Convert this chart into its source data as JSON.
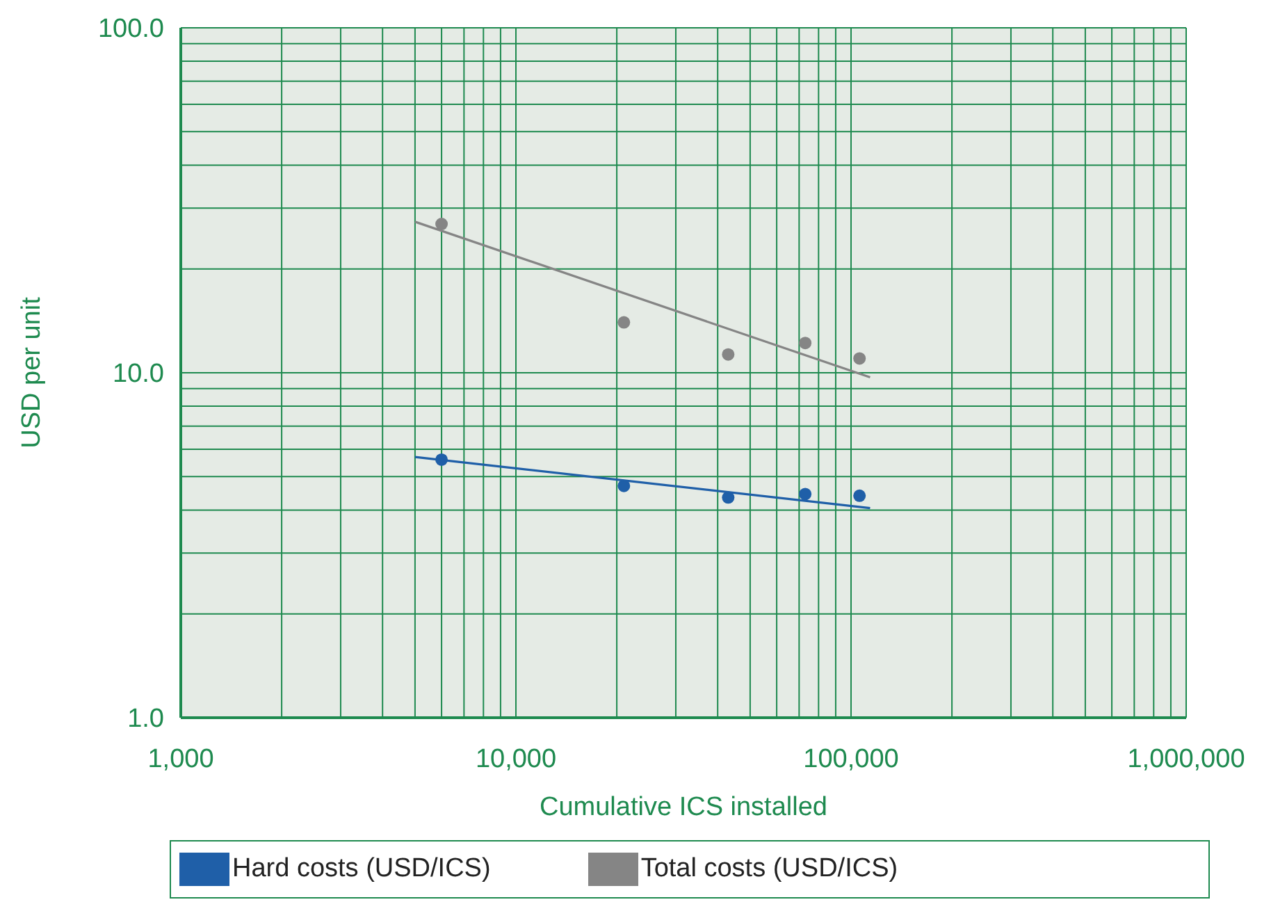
{
  "chart_data": {
    "type": "scatter",
    "xlabel": "Cumulative ICS installed",
    "ylabel": "USD per unit",
    "log": "xy",
    "grid": true,
    "legend": "bottom",
    "marker": "circle",
    "xlim": [
      1000,
      1000000
    ],
    "ylim": [
      1,
      100
    ],
    "xticks": [
      {
        "value": 1000,
        "label": "1,000"
      },
      {
        "value": 2000,
        "label": null
      },
      {
        "value": 3000,
        "label": null
      },
      {
        "value": 4000,
        "label": null
      },
      {
        "value": 5000,
        "label": null
      },
      {
        "value": 6000,
        "label": null
      },
      {
        "value": 7000,
        "label": null
      },
      {
        "value": 8000,
        "label": null
      },
      {
        "value": 9000,
        "label": null
      },
      {
        "value": 10000,
        "label": "10,000"
      },
      {
        "value": 20000,
        "label": null
      },
      {
        "value": 30000,
        "label": null
      },
      {
        "value": 40000,
        "label": null
      },
      {
        "value": 50000,
        "label": null
      },
      {
        "value": 60000,
        "label": null
      },
      {
        "value": 70000,
        "label": null
      },
      {
        "value": 80000,
        "label": null
      },
      {
        "value": 90000,
        "label": null
      },
      {
        "value": 100000,
        "label": "100,000"
      },
      {
        "value": 200000,
        "label": null
      },
      {
        "value": 300000,
        "label": null
      },
      {
        "value": 400000,
        "label": null
      },
      {
        "value": 500000,
        "label": null
      },
      {
        "value": 600000,
        "label": null
      },
      {
        "value": 700000,
        "label": null
      },
      {
        "value": 800000,
        "label": null
      },
      {
        "value": 900000,
        "label": null
      },
      {
        "value": 1000000,
        "label": "1,000,000"
      }
    ],
    "yticks": [
      {
        "value": 1,
        "label": "1.0"
      },
      {
        "value": 2,
        "label": null
      },
      {
        "value": 3,
        "label": null
      },
      {
        "value": 4,
        "label": null
      },
      {
        "value": 5,
        "label": null
      },
      {
        "value": 6,
        "label": null
      },
      {
        "value": 7,
        "label": null
      },
      {
        "value": 8,
        "label": null
      },
      {
        "value": 9,
        "label": null
      },
      {
        "value": 10,
        "label": "10.0"
      },
      {
        "value": 20,
        "label": null
      },
      {
        "value": 30,
        "label": null
      },
      {
        "value": 40,
        "label": null
      },
      {
        "value": 50,
        "label": null
      },
      {
        "value": 60,
        "label": null
      },
      {
        "value": 70,
        "label": null
      },
      {
        "value": 80,
        "label": null
      },
      {
        "value": 90,
        "label": null
      },
      {
        "value": 100,
        "label": "100.0"
      }
    ],
    "series": [
      {
        "name": "Hard costs (USD/ICS)",
        "color": "#1f5fa8",
        "x": [
          6000,
          21000,
          43000,
          73000,
          106000
        ],
        "values": [
          5.6,
          4.7,
          4.35,
          4.45,
          4.4
        ]
      },
      {
        "name": "Total costs (USD/ICS)",
        "color": "#858585",
        "x": [
          6000,
          21000,
          43000,
          73000,
          106000
        ],
        "values": [
          27,
          14,
          11.3,
          12.2,
          11
        ]
      },
      {
        "type": "line",
        "marker": "none",
        "color": "#1f5fa8",
        "x": [
          5000,
          114000
        ],
        "values": [
          5.7,
          4.05
        ]
      },
      {
        "type": "line",
        "marker": "none",
        "color": "#858585",
        "x": [
          5000,
          114000
        ],
        "values": [
          27.4,
          9.7
        ]
      }
    ]
  }
}
